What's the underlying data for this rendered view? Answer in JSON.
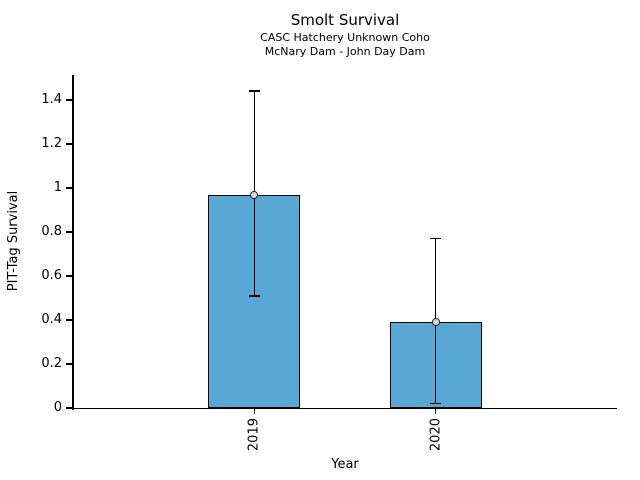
{
  "chart_data": {
    "type": "bar",
    "title": "Smolt Survival",
    "subtitle_line1": "CASC Hatchery Unknown Coho",
    "subtitle_line2": "McNary Dam - John Day Dam",
    "xlabel": "Year",
    "ylabel": "PIT-Tag Survival",
    "categories": [
      "2019",
      "2020"
    ],
    "values": [
      0.97,
      0.39
    ],
    "error_low": [
      0.51,
      0.02
    ],
    "error_high": [
      1.44,
      0.77
    ],
    "yticks": [
      0,
      0.2,
      0.4,
      0.6,
      0.8,
      1.0,
      1.2,
      1.4
    ],
    "ytick_labels": [
      "0",
      "0.2",
      "0.4",
      "0.6",
      "0.8",
      "1",
      "1.2",
      "1.4"
    ],
    "ylim": [
      0,
      1.51
    ],
    "grid": false,
    "legend": "none",
    "bar_color": "#57a8d4",
    "bar_edge_color": "#000000",
    "error_bar_color": "#000000",
    "marker_edge_color": "#262626",
    "marker_face_color": "#d9d9d9",
    "background_color": "#ffffff",
    "text_color": "#000000"
  }
}
